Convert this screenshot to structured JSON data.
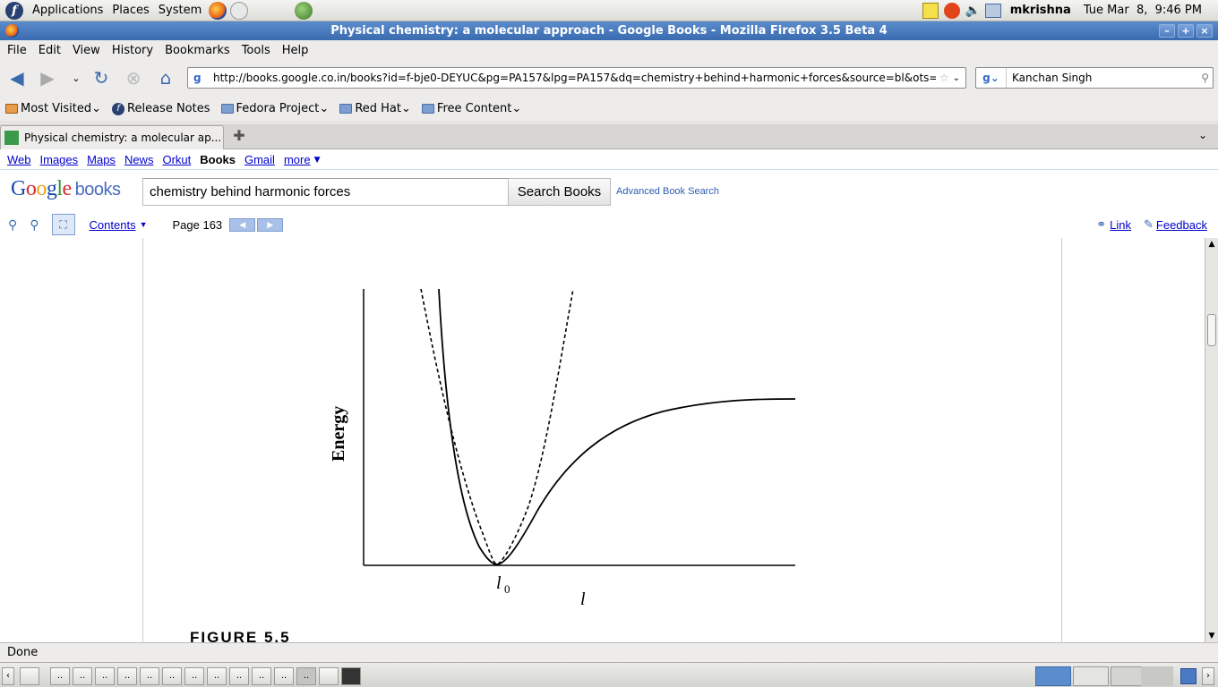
{
  "gnome_panel": {
    "menus": [
      "Applications",
      "Places",
      "System"
    ],
    "user": "mkrishna",
    "clock": "Tue Mar  8,  9:46 PM"
  },
  "window": {
    "title": "Physical chemistry: a molecular approach - Google Books - Mozilla Firefox 3.5 Beta 4"
  },
  "menubar": [
    "File",
    "Edit",
    "View",
    "History",
    "Bookmarks",
    "Tools",
    "Help"
  ],
  "navbar": {
    "url": "http://books.google.co.in/books?id=f-bje0-DEYUC&pg=PA157&lpg=PA157&dq=chemistry+behind+harmonic+forces&source=bl&ots=",
    "search_value": "Kanchan Singh"
  },
  "bookmarks": [
    "Most Visited",
    "Release Notes",
    "Fedora Project",
    "Red Hat",
    "Free Content"
  ],
  "tab": {
    "title": "Physical chemistry: a molecular ap..."
  },
  "gbar": {
    "links": [
      "Web",
      "Images",
      "Maps",
      "News",
      "Orkut"
    ],
    "current": "Books",
    "gmail": "Gmail",
    "more": "more"
  },
  "books_header": {
    "logo_google": "Google",
    "logo_books": "books",
    "query": "chemistry behind harmonic forces",
    "search_button": "Search Books",
    "advanced": "Advanced Book Search"
  },
  "viewer": {
    "contents": "Contents",
    "page": "Page 163",
    "link": "Link",
    "feedback": "Feedback"
  },
  "figure": {
    "ylabel": "Energy",
    "x0_label": "l",
    "x0_sub": "0",
    "xlabel": "l",
    "caption": "FIGURE 5.5"
  },
  "status": "Done",
  "taskbar": {
    "items": [
      "..",
      "..",
      "..",
      "..",
      "..",
      "..",
      "..",
      "..",
      "..",
      "..",
      "..",
      ".."
    ]
  }
}
